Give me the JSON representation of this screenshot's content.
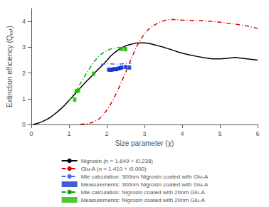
{
  "chart_data": {
    "type": "line",
    "xlabel": "Size parameter (χ)",
    "ylabel": "Extinction efficiency (Qₑₓₜ)",
    "xlim": [
      0,
      6
    ],
    "ylim": [
      0,
      4.5
    ],
    "xticks": [
      0,
      1,
      2,
      3,
      4,
      5,
      6
    ],
    "yticks": [
      0,
      1,
      2,
      3,
      4
    ],
    "grid": false,
    "legend": "bottom",
    "series": [
      {
        "name": "Nigrosin (n = 1.649 + i0.238)",
        "type": "line",
        "color": "#000000",
        "line_style": "solid",
        "x": [
          0.05,
          0.1,
          0.15,
          0.2,
          0.3,
          0.4,
          0.5,
          0.6,
          0.7,
          0.8,
          0.9,
          1.0,
          1.1,
          1.2,
          1.3,
          1.4,
          1.5,
          1.6,
          1.7,
          1.8,
          1.9,
          2.0,
          2.1,
          2.2,
          2.3,
          2.4,
          2.5,
          2.6,
          2.7,
          2.8,
          2.9,
          3.0,
          3.1,
          3.2,
          3.3,
          3.4,
          3.5,
          3.6,
          3.7,
          3.8,
          3.9,
          4.0,
          4.2,
          4.4,
          4.6,
          4.8,
          5.0,
          5.2,
          5.4,
          5.6,
          5.8,
          6.0
        ],
        "values": [
          0.01,
          0.02,
          0.04,
          0.06,
          0.12,
          0.19,
          0.27,
          0.38,
          0.5,
          0.63,
          0.77,
          0.93,
          1.09,
          1.25,
          1.42,
          1.58,
          1.73,
          1.88,
          2.03,
          2.18,
          2.32,
          2.48,
          2.65,
          2.78,
          2.89,
          2.98,
          3.05,
          3.1,
          3.13,
          3.16,
          3.17,
          3.17,
          3.15,
          3.12,
          3.08,
          3.04,
          3.0,
          2.95,
          2.91,
          2.86,
          2.81,
          2.77,
          2.7,
          2.64,
          2.59,
          2.55,
          2.55,
          2.57,
          2.6,
          2.57,
          2.53,
          2.5
        ]
      },
      {
        "name": "Glu-A (n = 1.410 + i0.000)",
        "type": "line",
        "color": "#dd0000",
        "line_style": "dashdot",
        "x": [
          1.3,
          1.4,
          1.5,
          1.6,
          1.7,
          1.8,
          1.9,
          2.0,
          2.1,
          2.2,
          2.3,
          2.4,
          2.5,
          2.6,
          2.7,
          2.8,
          2.9,
          3.0,
          3.1,
          3.2,
          3.3,
          3.4,
          3.5,
          3.6,
          3.7,
          3.8,
          3.9,
          4.0,
          4.2,
          4.4,
          4.6,
          4.8,
          5.0,
          5.2,
          5.4,
          5.6,
          5.8,
          6.0
        ],
        "values": [
          0.01,
          0.02,
          0.04,
          0.07,
          0.13,
          0.22,
          0.36,
          0.55,
          0.78,
          1.05,
          1.35,
          1.68,
          2.02,
          2.38,
          2.72,
          3.04,
          3.3,
          3.52,
          3.68,
          3.8,
          3.89,
          3.96,
          4.02,
          4.06,
          4.07,
          4.07,
          4.06,
          4.05,
          4.04,
          4.03,
          4.02,
          4.0,
          3.97,
          3.93,
          3.9,
          3.85,
          3.8,
          3.73
        ]
      },
      {
        "name": "Mie calculation: 300nm Nigrosin coated with Glu-A",
        "type": "line",
        "color": "#4466ff",
        "line_style": "dashdot",
        "x": [
          1.85,
          1.9,
          1.95,
          2.0,
          2.05,
          2.1,
          2.15,
          2.2,
          2.25,
          2.3,
          2.35,
          2.4,
          2.45,
          2.5,
          2.55,
          2.6,
          2.65
        ],
        "values": [
          2.33,
          2.34,
          2.35,
          2.355,
          2.36,
          2.355,
          2.35,
          2.345,
          2.34,
          2.34,
          2.345,
          2.35,
          2.36,
          2.365,
          2.37,
          2.375,
          2.38
        ]
      },
      {
        "name": "Measurements: 300nm Nigrosin coated with Glu-A",
        "type": "scatter",
        "color": "#1133cc",
        "marker": "square",
        "x": [
          2.05,
          2.1,
          2.15,
          2.2,
          2.25,
          2.3,
          2.35,
          2.4,
          2.5,
          2.6
        ],
        "values": [
          2.13,
          2.12,
          2.13,
          2.15,
          2.14,
          2.17,
          2.19,
          2.21,
          2.23,
          2.21
        ],
        "yerr": [
          0.06,
          0.06,
          0.06,
          0.06,
          0.06,
          0.06,
          0.06,
          0.06,
          0.06,
          0.06
        ]
      },
      {
        "name": "Mie calculation: Nigrosin coated with 20nm Glu-A",
        "type": "line",
        "color": "#00aa00",
        "line_style": "dashdot",
        "x": [
          1.0,
          1.1,
          1.2,
          1.3,
          1.4,
          1.5,
          1.6,
          1.7,
          1.8,
          1.9,
          2.0,
          2.1,
          2.2,
          2.3,
          2.4,
          2.45,
          2.5
        ],
        "values": [
          0.93,
          1.13,
          1.36,
          1.59,
          1.83,
          2.07,
          2.3,
          2.5,
          2.66,
          2.78,
          2.87,
          2.93,
          2.96,
          2.98,
          2.99,
          2.99,
          2.99
        ]
      },
      {
        "name": "Measurements: Nigrosin coated with 20nm Glu-A",
        "type": "scatter",
        "color": "#22bb00",
        "marker": "square",
        "x": [
          1.15,
          1.2,
          1.25,
          1.65,
          2.4,
          2.5
        ],
        "values": [
          0.97,
          1.3,
          1.32,
          1.97,
          2.93,
          2.92
        ],
        "yerr": [
          0.07,
          0.07,
          0.07,
          0.07,
          0.07,
          0.07
        ]
      }
    ]
  }
}
